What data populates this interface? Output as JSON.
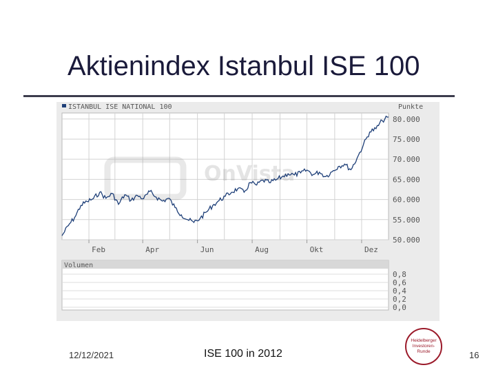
{
  "slide": {
    "title": "Aktienindex Istanbul ISE 100",
    "date": "12/12/2021",
    "footer": "ISE 100 in 2012",
    "page": "16",
    "logo_lines": [
      "Heidelberger",
      "Investoren-",
      "Runde"
    ]
  },
  "chart_data": {
    "type": "line",
    "title": "ISTANBUL ISE NATIONAL 100",
    "ylabel": "Punkte",
    "watermark": "OnVista",
    "ylim": [
      50000,
      81500
    ],
    "yticks": [
      50000,
      55000,
      60000,
      65000,
      70000,
      75000,
      80000
    ],
    "ytick_labels": [
      "50.000",
      "55.000",
      "60.000",
      "65.000",
      "70.000",
      "75.000",
      "80.000"
    ],
    "xlim": [
      "2012-01-02",
      "2012-12-31"
    ],
    "xticks": [
      "2012-02-01",
      "2012-04-01",
      "2012-06-01",
      "2012-08-01",
      "2012-10-01",
      "2012-12-01"
    ],
    "xtick_labels": [
      "Feb",
      "Apr",
      "Jun",
      "Aug",
      "Okt",
      "Dez"
    ],
    "grid": true,
    "series": [
      {
        "name": "ISTANBUL ISE NATIONAL 100",
        "color": "#1e3f78",
        "x": [
          "2012-01-02",
          "2012-01-09",
          "2012-01-16",
          "2012-01-23",
          "2012-01-30",
          "2012-02-06",
          "2012-02-13",
          "2012-02-20",
          "2012-02-27",
          "2012-03-05",
          "2012-03-12",
          "2012-03-19",
          "2012-03-26",
          "2012-04-02",
          "2012-04-09",
          "2012-04-16",
          "2012-04-23",
          "2012-04-30",
          "2012-05-07",
          "2012-05-14",
          "2012-05-21",
          "2012-05-28",
          "2012-06-04",
          "2012-06-11",
          "2012-06-18",
          "2012-06-25",
          "2012-07-02",
          "2012-07-09",
          "2012-07-16",
          "2012-07-23",
          "2012-07-30",
          "2012-08-06",
          "2012-08-13",
          "2012-08-20",
          "2012-08-27",
          "2012-09-03",
          "2012-09-10",
          "2012-09-17",
          "2012-09-24",
          "2012-10-01",
          "2012-10-08",
          "2012-10-15",
          "2012-10-22",
          "2012-10-29",
          "2012-11-05",
          "2012-11-12",
          "2012-11-19",
          "2012-11-26",
          "2012-12-03",
          "2012-12-10",
          "2012-12-17",
          "2012-12-24",
          "2012-12-31"
        ],
        "values": [
          51000,
          53500,
          55500,
          58500,
          59500,
          60200,
          61800,
          60300,
          61500,
          58800,
          61200,
          59800,
          61000,
          60200,
          62000,
          60600,
          59600,
          60300,
          58000,
          56200,
          55000,
          54300,
          55300,
          56900,
          58500,
          59700,
          60800,
          61800,
          62700,
          61800,
          64200,
          63600,
          64800,
          64200,
          64800,
          65600,
          66400,
          66100,
          66600,
          67300,
          66200,
          66800,
          65700,
          66900,
          68200,
          68800,
          67400,
          70300,
          73600,
          76800,
          77600,
          79600,
          80500
        ]
      }
    ]
  },
  "volume_panel": {
    "label": "Volumen",
    "tick_labels": [
      "0,8",
      "0,6",
      "0,4",
      "0,2",
      "0,0"
    ]
  }
}
